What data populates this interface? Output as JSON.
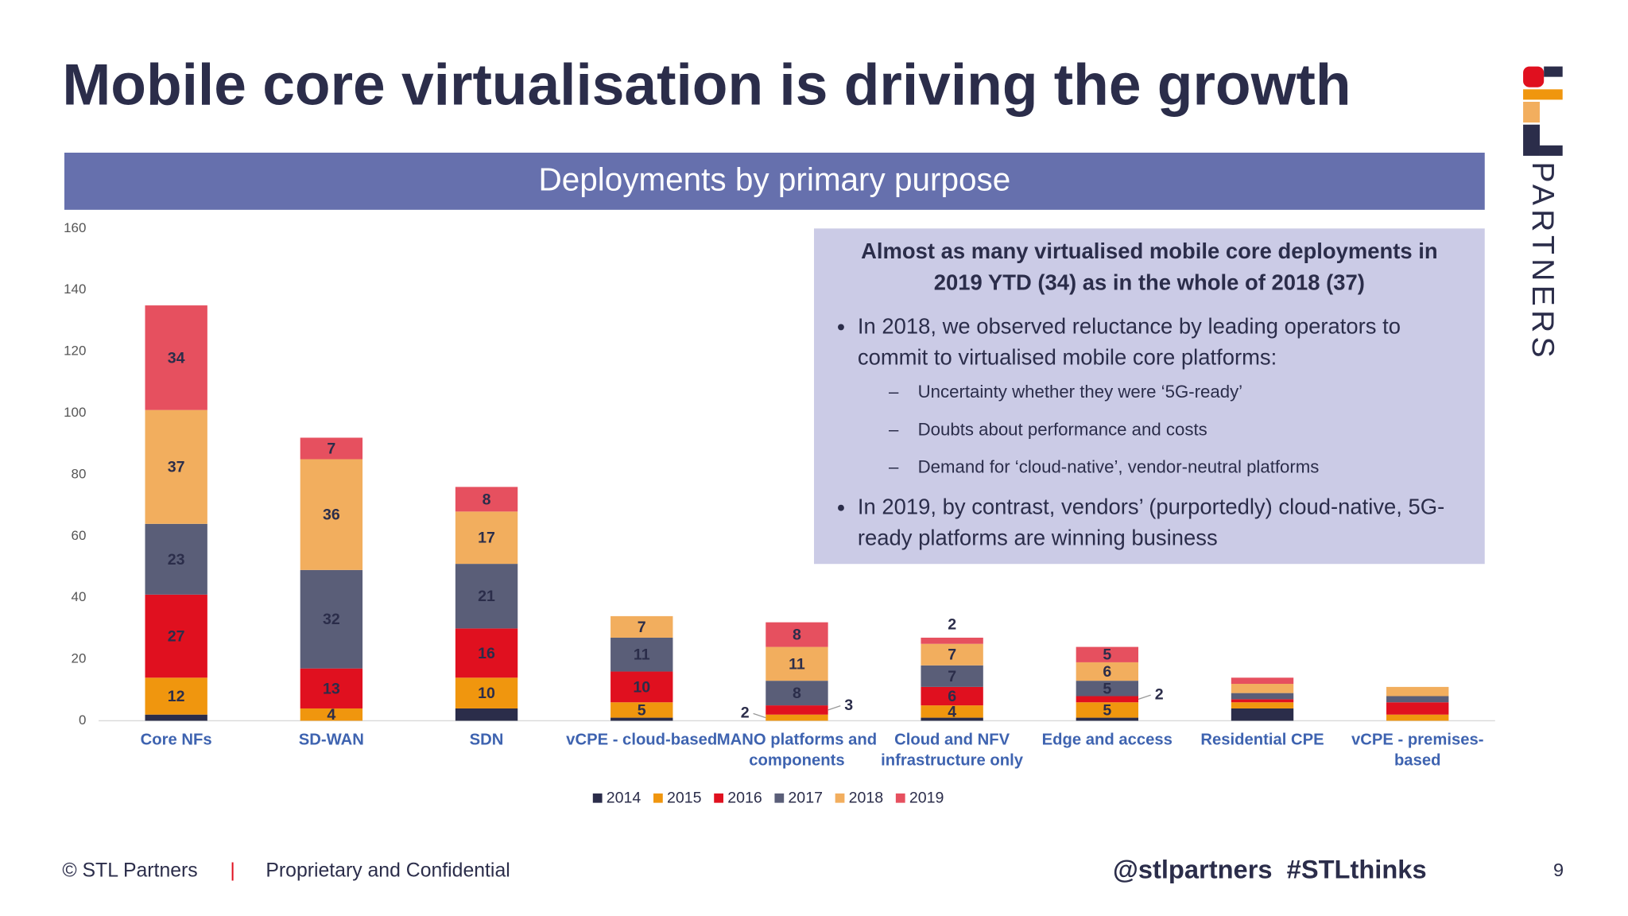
{
  "title": "Mobile core virtualisation is driving the growth",
  "logo": {
    "text": "PARTNERS"
  },
  "callout": {
    "heading": "Almost as many virtualised mobile core deployments in 2019 YTD (34) as in the whole of 2018 (37)",
    "bullets": [
      {
        "text": "In 2018, we observed reluctance by leading operators to commit to virtualised mobile core platforms:",
        "sub": [
          "Uncertainty whether they were ‘5G-ready’",
          "Doubts about performance and costs",
          "Demand for ‘cloud-native’, vendor-neutral platforms"
        ]
      },
      {
        "text": "In 2019, by contrast, vendors’ (purportedly) cloud-native, 5G-ready platforms are winning business",
        "sub": []
      }
    ]
  },
  "footer": {
    "copyright": "© STL Partners",
    "separator": "|",
    "confidential": "Proprietary and Confidential",
    "social": "@stlpartners  #STLthinks",
    "page": "9"
  },
  "chart_data": {
    "type": "stacked_bar",
    "title": "Deployments by primary purpose",
    "categories": [
      "Core NFs",
      "SD-WAN",
      "SDN",
      "vCPE - cloud-based",
      "MANO platforms and components",
      "Cloud and NFV infrastructure only",
      "Edge and access",
      "Residential CPE",
      "vCPE - premises-based"
    ],
    "ylim": [
      0,
      160
    ],
    "yticks": [
      0,
      20,
      40,
      60,
      80,
      100,
      120,
      140,
      160
    ],
    "grid": false,
    "legend": "bottom",
    "series": [
      {
        "name": "2014",
        "color": "#2b2d4a",
        "values": [
          2,
          0,
          4,
          1,
          0,
          1,
          1,
          4,
          0
        ],
        "value_labels": [
          null,
          null,
          null,
          null,
          null,
          null,
          null,
          null,
          null
        ]
      },
      {
        "name": "2015",
        "color": "#f0960e",
        "values": [
          12,
          4,
          10,
          5,
          2,
          4,
          5,
          2,
          2
        ],
        "value_labels": [
          "12",
          "4",
          "10",
          "5",
          "2",
          "4",
          "5",
          null,
          null
        ]
      },
      {
        "name": "2016",
        "color": "#e0101f",
        "values": [
          27,
          13,
          16,
          10,
          3,
          6,
          2,
          1,
          4
        ],
        "value_labels": [
          "27",
          "13",
          "16",
          "10",
          "3",
          "6",
          "2",
          null,
          null
        ]
      },
      {
        "name": "2017",
        "color": "#5a5e78",
        "values": [
          23,
          32,
          21,
          11,
          8,
          7,
          5,
          2,
          2
        ],
        "value_labels": [
          "23",
          "32",
          "21",
          "11",
          "8",
          "7",
          "5",
          null,
          null
        ]
      },
      {
        "name": "2018",
        "color": "#f2ae5e",
        "values": [
          37,
          36,
          17,
          7,
          11,
          7,
          6,
          3,
          3
        ],
        "value_labels": [
          "37",
          "36",
          "17",
          "7",
          "11",
          "7",
          "6",
          null,
          null
        ]
      },
      {
        "name": "2019",
        "color": "#e6505f",
        "values": [
          34,
          7,
          8,
          0,
          8,
          2,
          5,
          2,
          0
        ],
        "value_labels": [
          "34",
          "7",
          "8",
          null,
          "8",
          "2",
          "5",
          null,
          null
        ]
      }
    ]
  }
}
